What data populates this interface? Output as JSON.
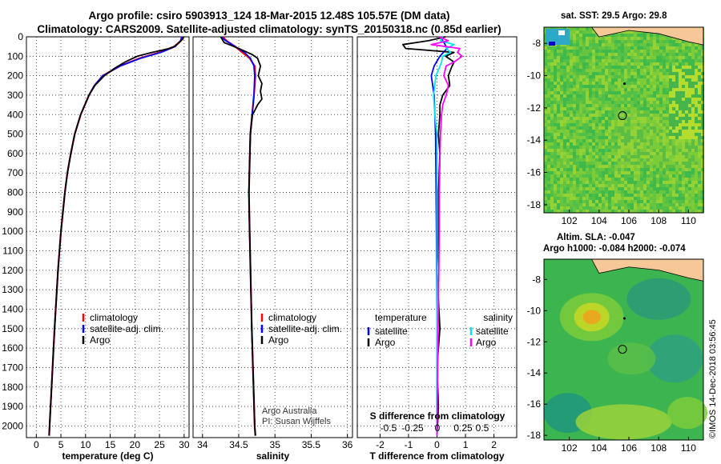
{
  "titles": {
    "line1": "Argo profile: csiro 5903913_124 18-Mar-2015 12.48S 105.57E (DM data)",
    "line2": "Climatology: CARS2009. Satellite-adjusted climatology: synTS_20150318.nc (0.85d earlier)"
  },
  "colors": {
    "climatology": "#ff0000",
    "satellite": "#0000ff",
    "argo": "#000000",
    "t_satellite": "#0000ff",
    "s_satellite": "#00e5ee",
    "s_argo": "#ff00ff",
    "land": "#f6c797"
  },
  "chart_data": [
    {
      "type": "line",
      "xlabel": "temperature (deg C)",
      "ylabel": "",
      "xlim": [
        -2,
        31
      ],
      "ylim": [
        2060,
        0
      ],
      "xticks": [
        "0",
        "5",
        "10",
        "15",
        "20",
        "25",
        "30"
      ],
      "yticks": [
        "0",
        "100",
        "200",
        "300",
        "400",
        "500",
        "600",
        "700",
        "800",
        "900",
        "1000",
        "1100",
        "1200",
        "1300",
        "1400",
        "1500",
        "1600",
        "1700",
        "1800",
        "1900",
        "2000"
      ],
      "legend": [
        "climatology",
        "satellite-adj. clim.",
        "Argo"
      ],
      "series": [
        {
          "name": "climatology",
          "depth": [
            0,
            20,
            50,
            80,
            110,
            150,
            200,
            250,
            300,
            400,
            500,
            600,
            700,
            800,
            1000,
            1200,
            1500,
            1800,
            2050
          ],
          "values": [
            29.5,
            29.3,
            28.0,
            25.0,
            21.0,
            17.0,
            13.5,
            11.8,
            10.7,
            9.0,
            7.8,
            7.0,
            6.3,
            5.8,
            5.0,
            4.4,
            3.7,
            3.1,
            2.6
          ]
        },
        {
          "name": "satellite-adj. clim.",
          "depth": [
            0,
            20,
            50,
            80,
            110,
            150,
            200,
            250,
            300,
            400,
            500,
            600,
            700,
            800,
            1000,
            1200,
            1500,
            1800,
            2050
          ],
          "values": [
            29.6,
            29.3,
            28.2,
            25.3,
            21.2,
            17.0,
            13.5,
            11.8,
            10.7,
            9.0,
            7.8,
            7.0,
            6.3,
            5.8,
            5.0,
            4.4,
            3.7,
            3.1,
            2.6
          ]
        },
        {
          "name": "Argo",
          "depth": [
            0,
            10,
            30,
            50,
            60,
            80,
            100,
            130,
            160,
            200,
            250,
            300,
            400,
            500,
            600,
            700,
            800,
            1000,
            1200,
            1500,
            1800,
            2050
          ],
          "values": [
            29.8,
            29.8,
            29.0,
            28.0,
            27.0,
            23.5,
            20.5,
            18.0,
            16.0,
            13.8,
            11.9,
            10.7,
            9.0,
            7.8,
            7.0,
            6.3,
            5.8,
            5.0,
            4.4,
            3.7,
            3.1,
            2.6
          ]
        }
      ]
    },
    {
      "type": "line",
      "xlabel": "salinity",
      "ylabel": "",
      "xlim": [
        33.87,
        36.07
      ],
      "ylim": [
        2060,
        0
      ],
      "xticks": [
        "34",
        "34.5",
        "35",
        "35.5",
        "36"
      ],
      "legend": [
        "climatology",
        "satellite-adj. clim.",
        "Argo"
      ],
      "annotations": [
        "Argo Australia",
        "PI: Susan Wijffels"
      ],
      "series": [
        {
          "name": "climatology",
          "depth": [
            0,
            20,
            50,
            80,
            110,
            150,
            200,
            300,
            500,
            800,
            1000,
            1500,
            2000,
            2050
          ],
          "values": [
            34.28,
            34.33,
            34.45,
            34.55,
            34.65,
            34.72,
            34.73,
            34.71,
            34.66,
            34.64,
            34.65,
            34.68,
            34.72,
            34.73
          ]
        },
        {
          "name": "satellite-adj. clim.",
          "depth": [
            0,
            20,
            50,
            80,
            110,
            150,
            200,
            300,
            500,
            800,
            1000,
            1500,
            2000,
            2050
          ],
          "values": [
            34.26,
            34.32,
            34.45,
            34.58,
            34.66,
            34.71,
            34.72,
            34.71,
            34.66,
            34.64,
            34.65,
            34.68,
            34.72,
            34.73
          ]
        },
        {
          "name": "Argo",
          "depth": [
            0,
            30,
            60,
            90,
            110,
            150,
            200,
            240,
            280,
            320,
            350,
            380,
            400,
            500,
            800,
            1000,
            1500,
            2000,
            2050
          ],
          "values": [
            34.25,
            34.3,
            34.5,
            34.68,
            34.76,
            34.8,
            34.77,
            34.82,
            34.8,
            34.82,
            34.76,
            34.72,
            34.69,
            34.66,
            34.64,
            34.65,
            34.68,
            34.72,
            34.73
          ]
        }
      ]
    },
    {
      "type": "line",
      "xlabel": "T difference from climatology",
      "secondary_xlabel": "S difference from climatology",
      "xlim": [
        -2.8,
        2.8
      ],
      "ylim": [
        2060,
        0
      ],
      "xticks": [
        "-2",
        "-1",
        "0",
        "1",
        "2"
      ],
      "secondary_xticks": [
        "-0.5",
        "-0.25",
        "0",
        "0.25",
        "0.5"
      ],
      "legend": [
        "temperature",
        "satellite",
        "Argo",
        "salinity",
        "satellite",
        "Argo"
      ],
      "series": [
        {
          "name": "temperature satellite",
          "depth": [
            0,
            30,
            60,
            100,
            150,
            200,
            300,
            500,
            1000,
            1500,
            2050
          ],
          "values": [
            0.1,
            0.25,
            0.35,
            0.1,
            -0.1,
            -0.2,
            -0.1,
            -0.05,
            -0.02,
            0.0,
            0.0
          ]
        },
        {
          "name": "temperature Argo",
          "depth": [
            0,
            20,
            40,
            60,
            80,
            100,
            130,
            160,
            200,
            250,
            300,
            350,
            400,
            500,
            600,
            800,
            1000,
            1200,
            1500,
            1700,
            1900,
            2050
          ],
          "values": [
            0.3,
            -0.3,
            -1.2,
            -1.1,
            0.6,
            0.3,
            0.6,
            0.5,
            0.4,
            0.45,
            0.2,
            0.1,
            0.1,
            0.05,
            0.1,
            0.05,
            0.05,
            0.0,
            0.1,
            0.0,
            0.05,
            0.0
          ]
        },
        {
          "name": "salinity satellite",
          "depth": [
            0,
            20,
            40,
            60,
            80,
            100,
            130,
            160,
            200,
            250,
            300,
            400,
            500,
            1000,
            1500,
            2050
          ],
          "values": [
            0.05,
            0.03,
            0.15,
            0.08,
            0.12,
            0.05,
            0.04,
            0.02,
            -0.01,
            -0.02,
            -0.03,
            -0.02,
            0.0,
            0.0,
            0.0,
            0.0
          ]
        },
        {
          "name": "salinity Argo",
          "depth": [
            0,
            20,
            40,
            60,
            80,
            100,
            130,
            150,
            200,
            250,
            300,
            350,
            400,
            500,
            800,
            1000,
            1500,
            2000,
            2050
          ],
          "values": [
            0.02,
            0.1,
            -0.05,
            0.2,
            0.18,
            0.22,
            0.15,
            0.08,
            0.06,
            0.1,
            0.08,
            0.05,
            0.04,
            0.03,
            0.02,
            0.02,
            0.01,
            0.0,
            0.0
          ]
        }
      ]
    },
    {
      "type": "heatmap",
      "title": "sat. SST: 29.5 Argo: 29.8",
      "xticks": [
        "102",
        "104",
        "106",
        "108",
        "110"
      ],
      "yticks": [
        "-8",
        "-10",
        "-12",
        "-14",
        "-16",
        "-18"
      ],
      "xlim": [
        100.3,
        111.0
      ],
      "ylim": [
        -18.5,
        -7.0
      ],
      "argo_position": {
        "lon": 105.57,
        "lat": -12.48
      },
      "marker_position": {
        "lon": 105.7,
        "lat": -10.5
      }
    },
    {
      "type": "heatmap",
      "title": "Altim. SLA: -0.047",
      "subtitle": "Argo h1000: -0.084 h2000: -0.074",
      "xticks": [
        "102",
        "104",
        "106",
        "108",
        "110"
      ],
      "yticks": [
        "-8",
        "-10",
        "-12",
        "-14",
        "-16",
        "-18"
      ],
      "xlim": [
        100.3,
        111.0
      ],
      "ylim": [
        -18.3,
        -6.7
      ],
      "argo_position": {
        "lon": 105.57,
        "lat": -12.48
      },
      "marker_position": {
        "lon": 105.7,
        "lat": -10.5
      }
    }
  ],
  "footer": {
    "stamp": "©IMOS 14-Dec-2018 03:56:45"
  }
}
